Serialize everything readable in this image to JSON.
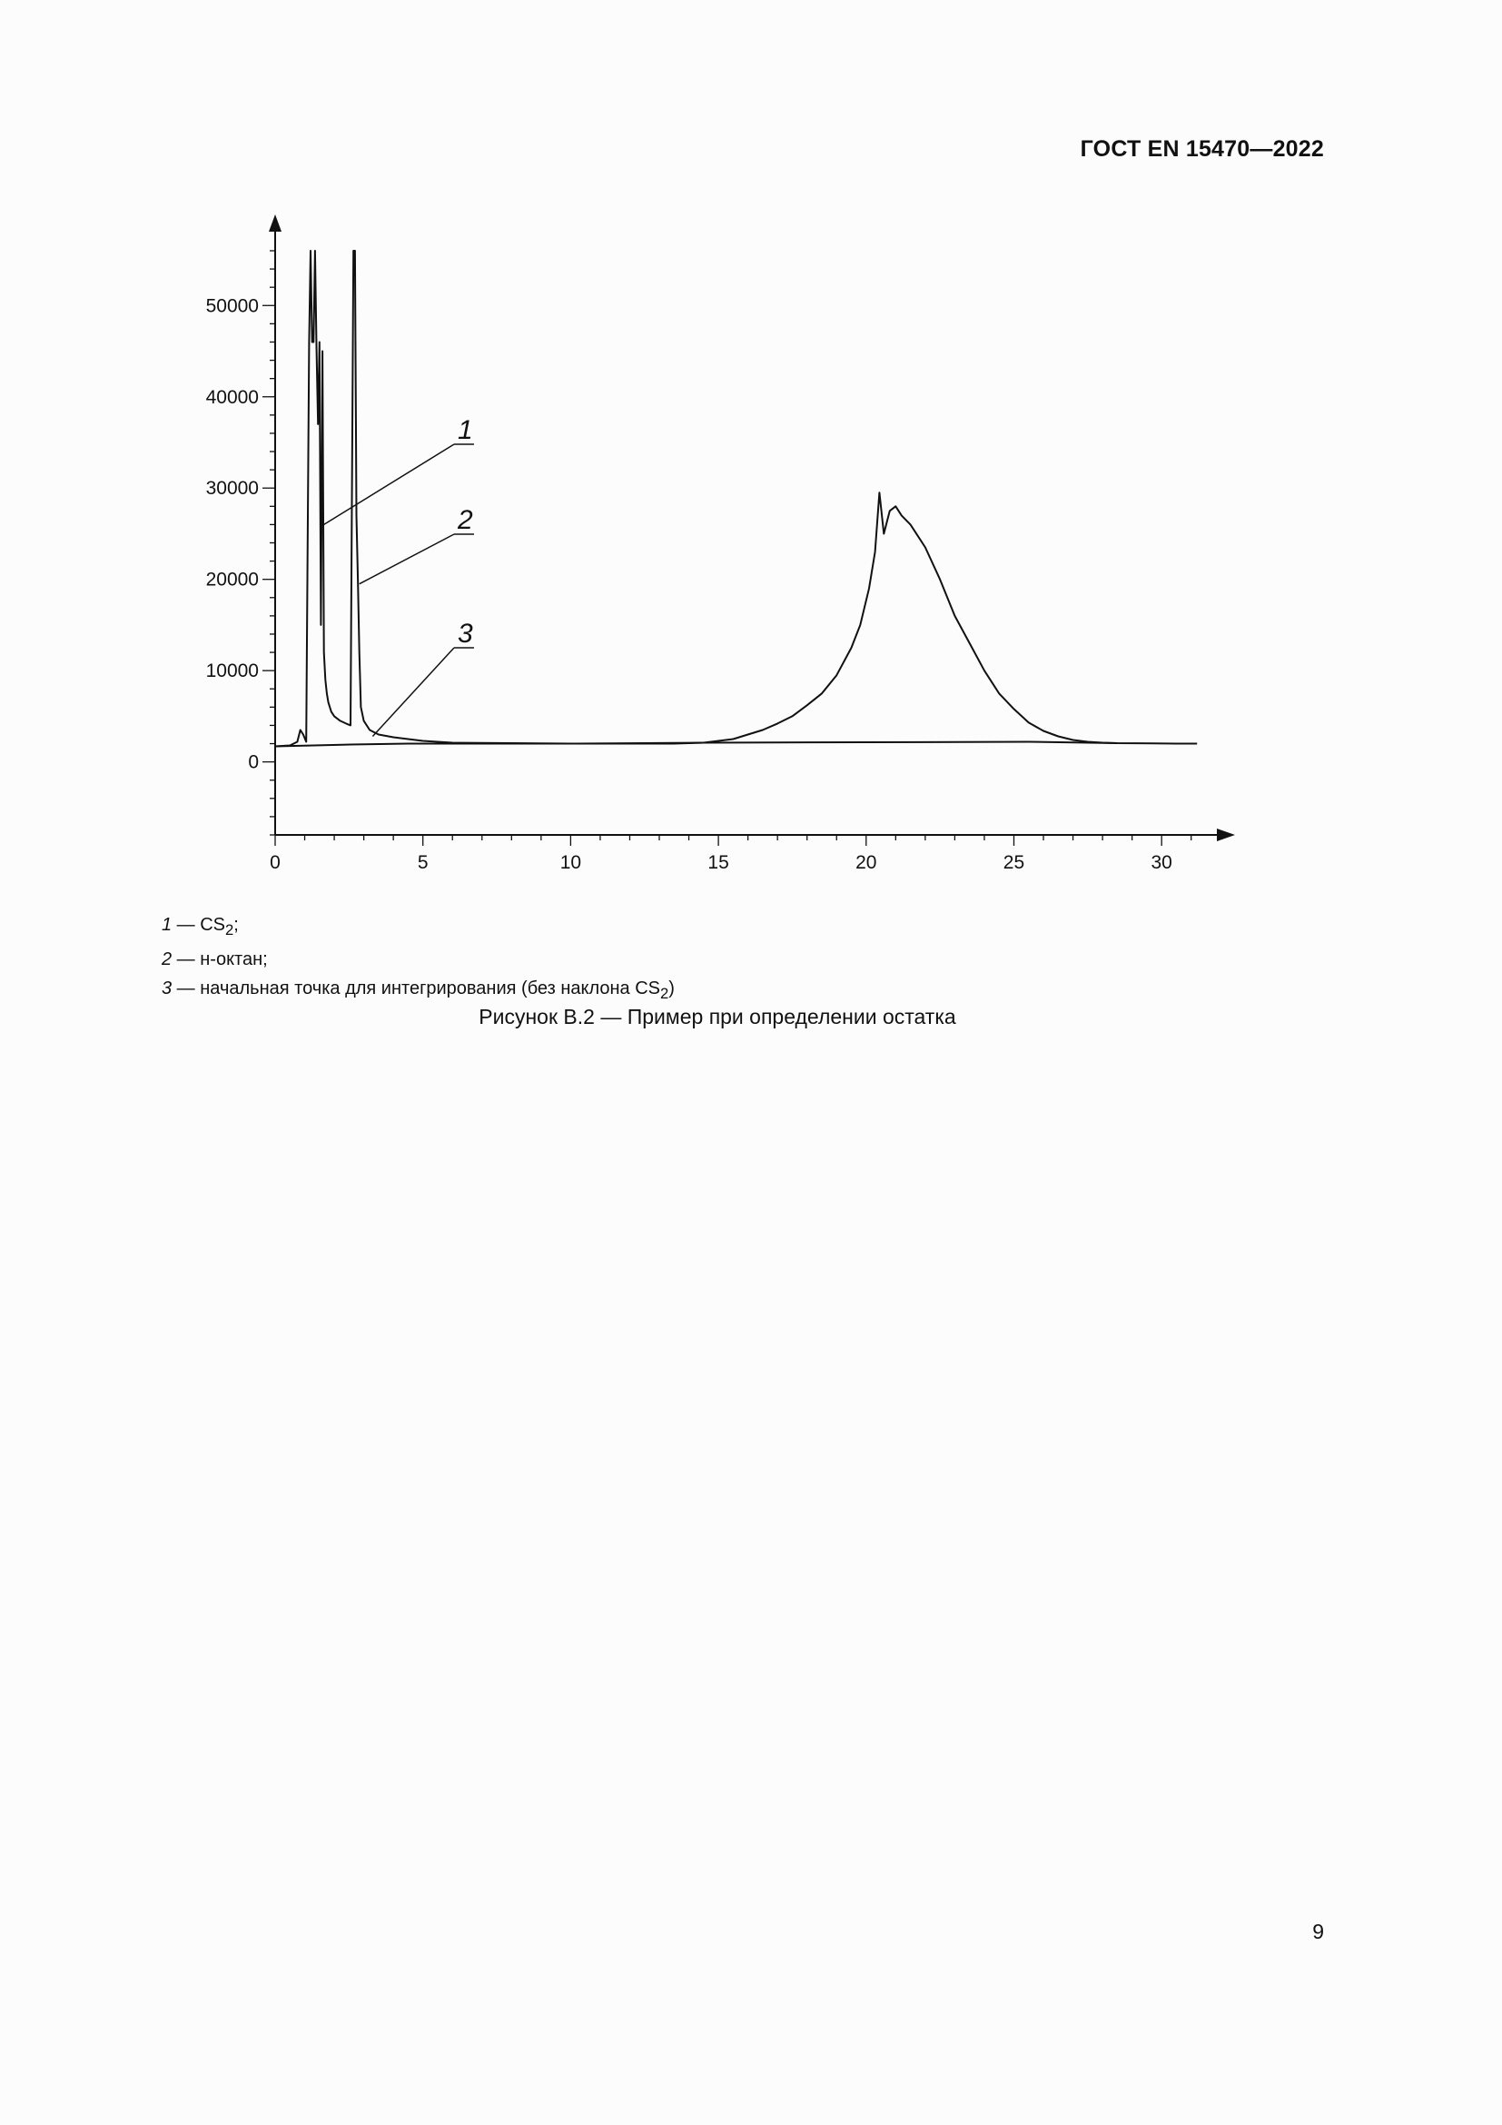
{
  "header": {
    "standard": "ГОСТ EN 15470—2022"
  },
  "chart_data": {
    "type": "line",
    "title": "",
    "xlabel": "",
    "ylabel": "",
    "xlim": [
      0,
      31.5
    ],
    "ylim": [
      -8000,
      56000
    ],
    "x_ticks": [
      0,
      5,
      10,
      15,
      20,
      25,
      30
    ],
    "y_ticks": [
      0,
      10000,
      20000,
      30000,
      40000,
      50000
    ],
    "grid": false,
    "series": [
      {
        "x": [
          0,
          0.5,
          0.75,
          0.85,
          0.95,
          1.05,
          1.15,
          1.2,
          1.25,
          1.3,
          1.35,
          1.4,
          1.45,
          1.5,
          1.55,
          1.6,
          1.65,
          1.7,
          1.75,
          1.8,
          1.85,
          1.9,
          2.0,
          2.2,
          2.4,
          2.55,
          2.65,
          2.7,
          2.75,
          2.8,
          2.85,
          2.9,
          3.0,
          3.2,
          3.5,
          4.0,
          4.5,
          5.0,
          6.0,
          8.0,
          10.0,
          12.0,
          13.5,
          14.5,
          15.5,
          16.0,
          16.5,
          17.0,
          17.5,
          18.0,
          18.5,
          19.0,
          19.5,
          19.8,
          20.1,
          20.3,
          20.45,
          20.6,
          20.8,
          21.0,
          21.2,
          21.5,
          22.0,
          22.5,
          23.0,
          23.5,
          24.0,
          24.5,
          25.0,
          25.5,
          26.0,
          26.5,
          27.0,
          27.5,
          28.0,
          28.5,
          30.5,
          31.2
        ],
        "values": [
          1700,
          1800,
          2200,
          3500,
          3000,
          2200,
          46000,
          56000,
          46000,
          46000,
          56000,
          45000,
          37000,
          46000,
          15000,
          45000,
          12000,
          9000,
          7500,
          6500,
          6000,
          5500,
          5000,
          4500,
          4200,
          4000,
          56000,
          56000,
          27000,
          20000,
          12000,
          6000,
          4500,
          3500,
          3000,
          2700,
          2500,
          2300,
          2100,
          2050,
          2000,
          2000,
          2000,
          2100,
          2500,
          3000,
          3500,
          4200,
          5000,
          6200,
          7500,
          9500,
          12500,
          15000,
          19000,
          23000,
          29500,
          25000,
          27500,
          28000,
          27000,
          26000,
          23500,
          20000,
          16000,
          13000,
          10000,
          7500,
          5800,
          4300,
          3400,
          2800,
          2400,
          2200,
          2100,
          2050,
          2000,
          2000
        ]
      },
      {
        "x": [
          0,
          2.55,
          4.5,
          6.5,
          10.0,
          14.5,
          25.5,
          28.5
        ],
        "values": [
          1700,
          1900,
          2000,
          2000,
          2000,
          2100,
          2200,
          2050
        ]
      }
    ],
    "annotations": [
      {
        "label": "1",
        "x": 1.65,
        "y": 26000
      },
      {
        "label": "2",
        "x": 2.85,
        "y": 19500
      },
      {
        "label": "3",
        "x": 3.3,
        "y": 2800
      }
    ]
  },
  "legend": [
    {
      "num": "1",
      "text": " — CS",
      "sub": "2",
      "after": ";"
    },
    {
      "num": "2",
      "text": " — н-октан;",
      "sub": "",
      "after": ""
    },
    {
      "num": "3",
      "text": " — начальная точка для интегрирования (без наклона CS",
      "sub": "2",
      "after": ")"
    }
  ],
  "caption": "Рисунок В.2 — Пример при определении остатка",
  "page_number": "9"
}
